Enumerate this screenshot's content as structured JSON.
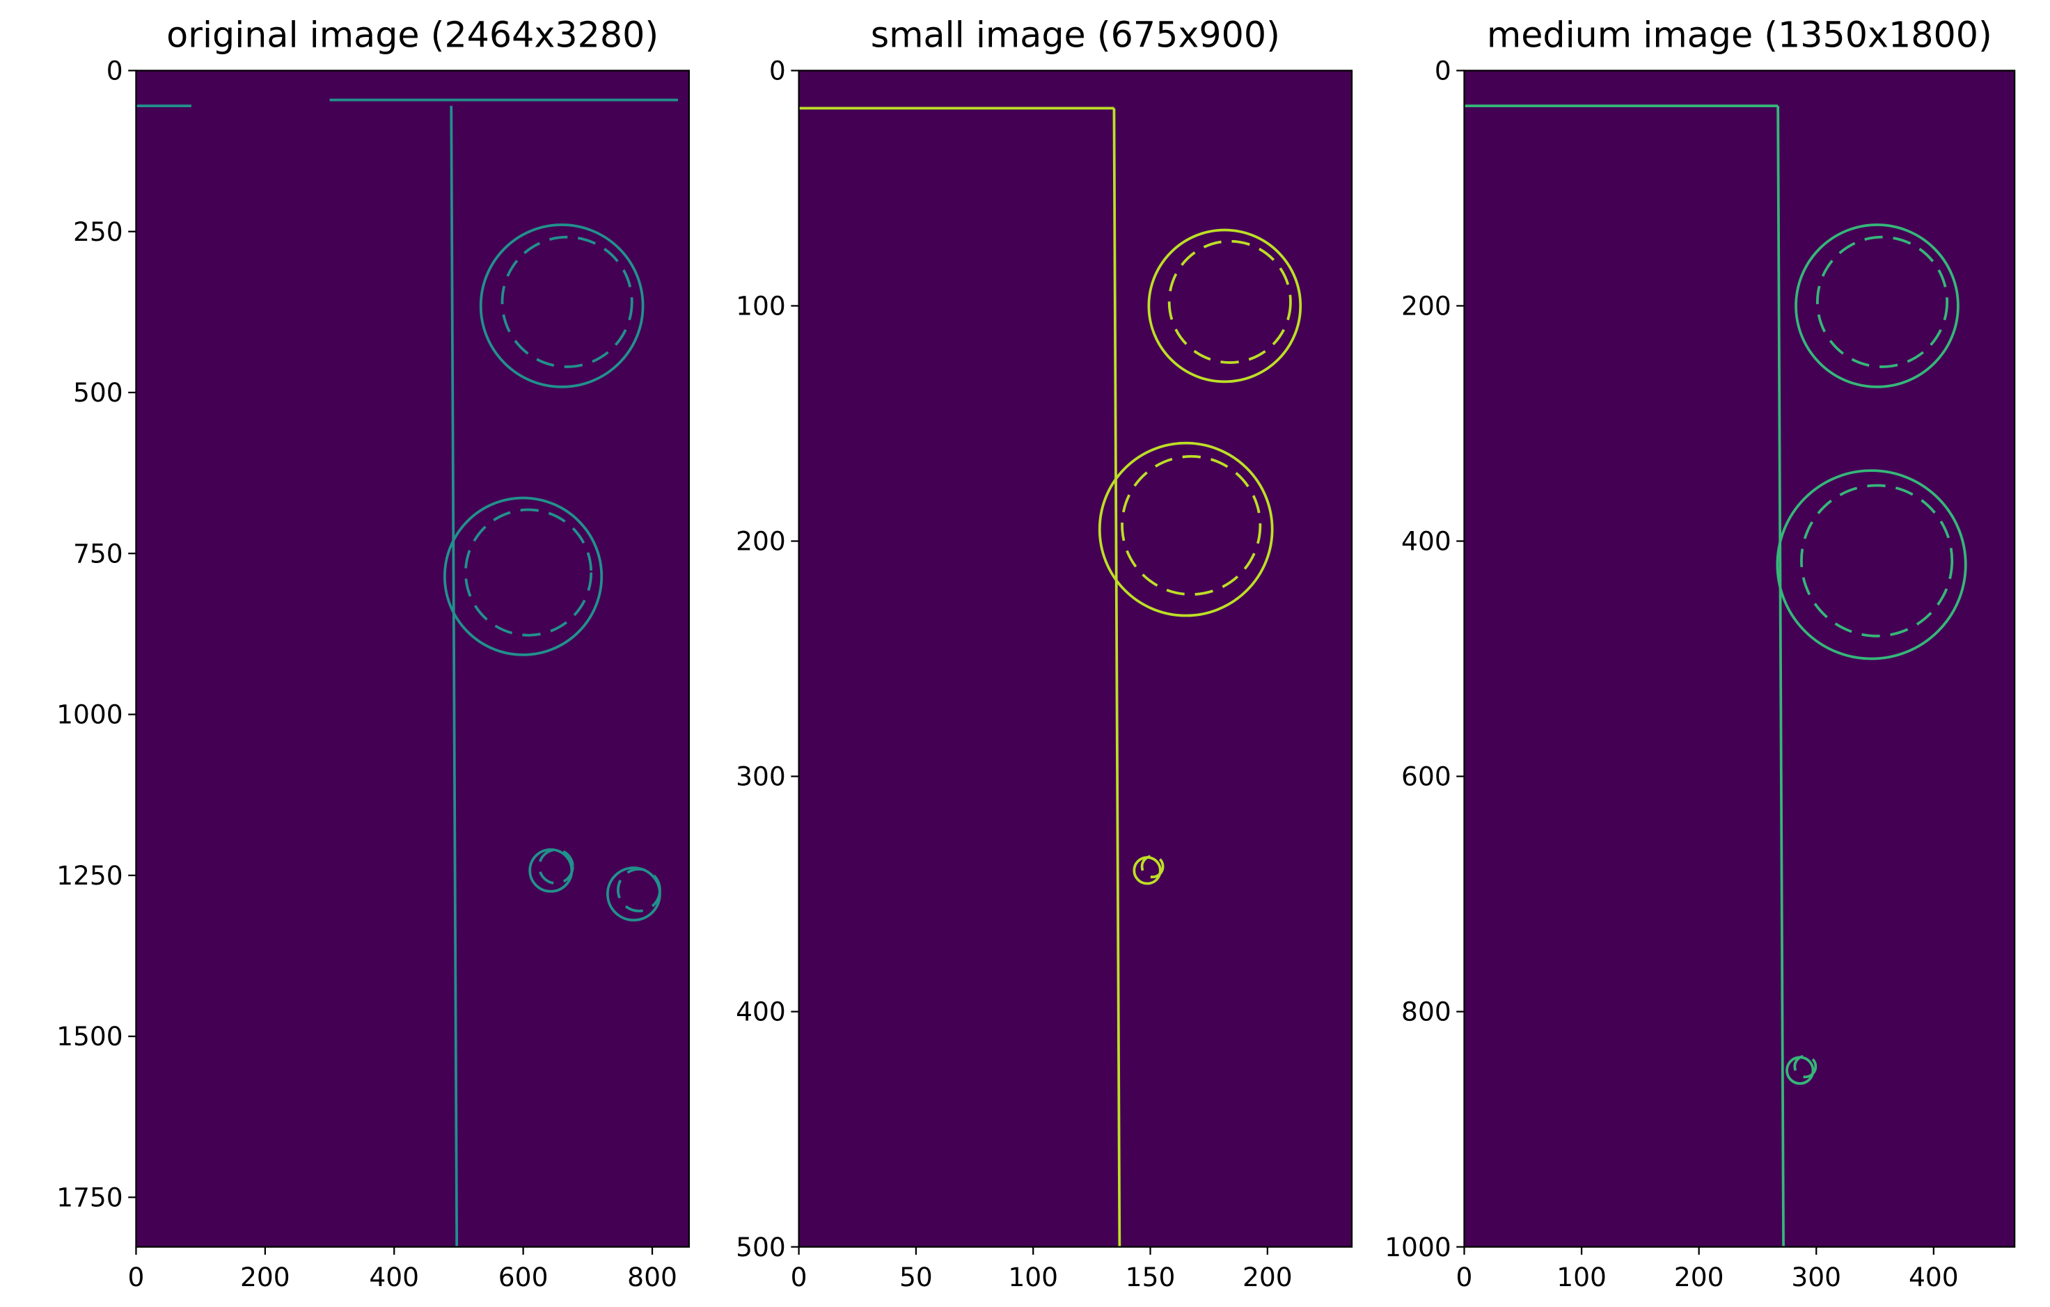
{
  "chart_data": [
    {
      "type": "image",
      "title": "original image (2464x3280)",
      "xlim": [
        0,
        857
      ],
      "ylim": [
        1827,
        0
      ],
      "xticks": [
        0,
        200,
        400,
        600,
        800
      ],
      "yticks": [
        0,
        250,
        500,
        750,
        1000,
        1250,
        1500,
        1750
      ],
      "background": "#440154",
      "color": "#21918c"
    },
    {
      "type": "image",
      "title": "small image (675x900)",
      "xlim": [
        0,
        236
      ],
      "ylim": [
        500,
        0
      ],
      "xticks": [
        0,
        50,
        100,
        150,
        200
      ],
      "yticks": [
        0,
        100,
        200,
        300,
        400,
        500
      ],
      "background": "#440154",
      "color": "#bddf26"
    },
    {
      "type": "image",
      "title": "medium image (1350x1800)",
      "xlim": [
        0,
        469
      ],
      "ylim": [
        1000,
        0
      ],
      "xticks": [
        0,
        100,
        200,
        300,
        400
      ],
      "yticks": [
        0,
        200,
        400,
        600,
        800,
        1000
      ],
      "background": "#440154",
      "color": "#35b779"
    }
  ]
}
